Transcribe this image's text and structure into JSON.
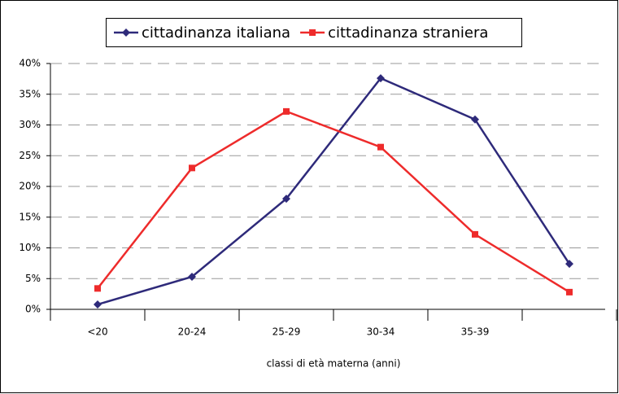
{
  "chart_data": {
    "type": "line",
    "categories": [
      "<20",
      "20-24",
      "25-29",
      "30-34",
      "35-39",
      null
    ],
    "series": [
      {
        "name": "cittadinanza italiana",
        "color": "#2e2a7a",
        "values": [
          0.8,
          5.3,
          18,
          37.6,
          30.9,
          7.4
        ]
      },
      {
        "name": "cittadinanza straniera",
        "color": "#ee2b2b",
        "values": [
          3.4,
          23,
          32.2,
          26.4,
          12.2,
          2.8
        ]
      }
    ],
    "ylim": [
      0,
      40
    ],
    "yticks": [
      {
        "value": 0,
        "label": "0%"
      },
      {
        "value": 5,
        "label": "5%"
      },
      {
        "value": 10,
        "label": "10%"
      },
      {
        "value": 15,
        "label": "15%"
      },
      {
        "value": 20,
        "label": "20%"
      },
      {
        "value": 25,
        "label": "25%"
      },
      {
        "value": 30,
        "label": "30%"
      },
      {
        "value": 35,
        "label": "35%"
      },
      {
        "value": 40,
        "label": "40%"
      }
    ],
    "xlabel": "classi di età materna (anni)",
    "grid": true,
    "legend": "top"
  }
}
